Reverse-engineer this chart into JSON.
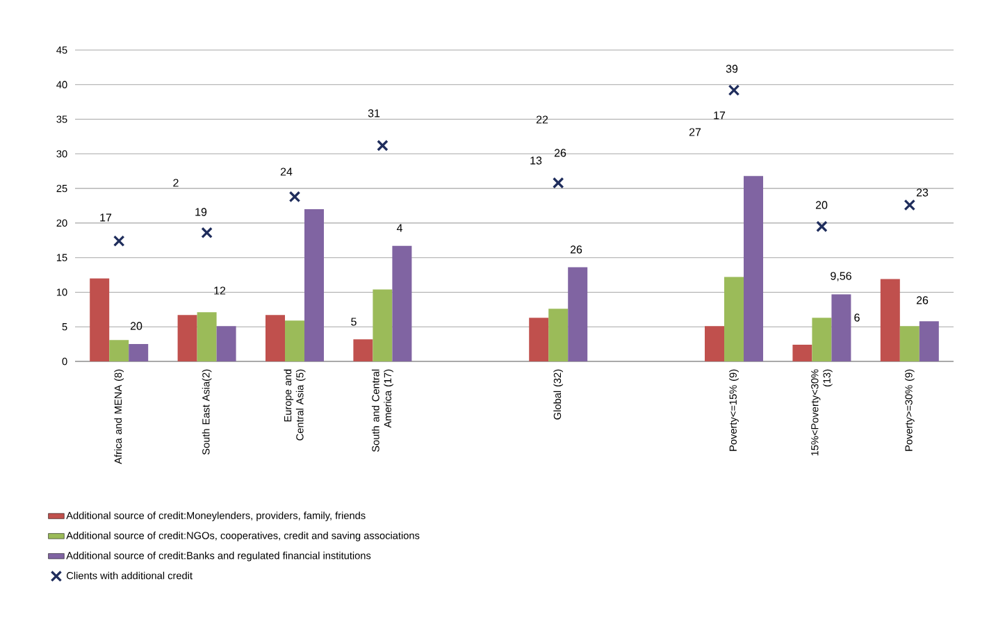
{
  "chart_data": {
    "type": "bar",
    "categories": [
      "Africa and MENA (8)",
      "South East Asia(2)",
      "Europe and Central Asia (5)",
      "South and Central America (17)",
      null,
      "Global (32)",
      null,
      "Poverty<=15% (9)",
      "15%<Poverty<30% (13)",
      "Poverty>=30% (9)"
    ],
    "series": [
      {
        "name": "Additional source of credit:Moneylenders, providers, family, friends",
        "color": "#c0504d",
        "values": [
          12,
          6.7,
          6.7,
          3.2,
          null,
          6.3,
          null,
          5.1,
          2.4,
          11.9
        ]
      },
      {
        "name": "Additional source of credit:NGOs, cooperatives, credit and saving associations",
        "color": "#9bbb59",
        "values": [
          3.1,
          7.1,
          5.9,
          10.4,
          null,
          7.6,
          null,
          12.2,
          6.3,
          5.1
        ]
      },
      {
        "name": "Additional source of credit:Banks and regulated financial institutions",
        "color": "#8064a2",
        "values": [
          2.5,
          5.1,
          22,
          16.7,
          null,
          13.6,
          null,
          26.8,
          9.7,
          5.8
        ]
      },
      {
        "name": "Clients with additional credit",
        "type": "scatter",
        "marker": "cross",
        "color": "#1f2d5c",
        "x": [
          "Africa and MENA (8)",
          "South East Asia(2)",
          "Europe and Central Asia (5)",
          "South and Central America (17)",
          "Global (32)",
          "Poverty<=15% (9)",
          "15%<Poverty<30% (13)",
          "Poverty>=30% (9)"
        ],
        "values": [
          17.4,
          18.6,
          23.8,
          31.2,
          25.8,
          39.2,
          19.5,
          22.6
        ]
      }
    ],
    "ylim": [
      0,
      45
    ],
    "yticks": [
      0,
      5,
      10,
      15,
      20,
      25,
      30,
      35,
      40,
      45
    ],
    "grid": "y",
    "legend": "bottom left",
    "annotations": [
      "17",
      "20",
      "2",
      "19",
      "12",
      "24",
      "5",
      "31",
      "4",
      "22",
      "13",
      "26",
      "26",
      "27",
      "17",
      "39",
      "20",
      "9,56",
      "6",
      "23",
      "26"
    ]
  }
}
